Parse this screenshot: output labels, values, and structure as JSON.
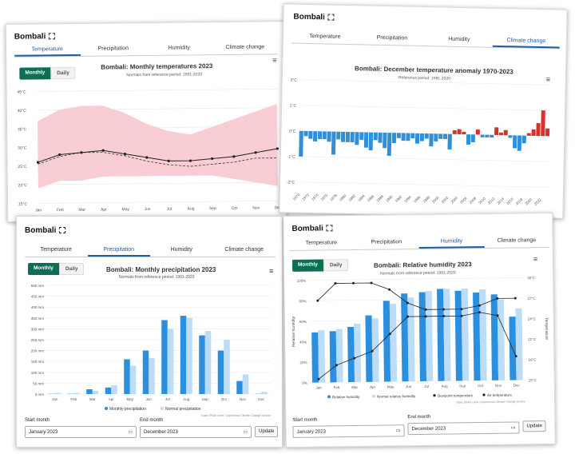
{
  "place": "Bombali",
  "tabs": [
    "Temperature",
    "Precipitation",
    "Humidity",
    "Climate change"
  ],
  "toggle": {
    "monthly": "Monthly",
    "daily": "Daily"
  },
  "months": [
    "Jan",
    "Feb",
    "Mar",
    "Apr",
    "May",
    "Jun",
    "Jul",
    "Aug",
    "Sep",
    "Oct",
    "Nov",
    "Dec"
  ],
  "credit": "Data: ERA5 Land / Copernicus Climate Change Service",
  "temp": {
    "title": "Bombali: Monthly temperatures 2023",
    "subtitle": "Normals from reference period: 1991-2020",
    "yticks": [
      "45°C",
      "40°C",
      "35°C",
      "30°C",
      "25°C",
      "20°C",
      "15°C"
    ],
    "legend": [
      "Mean temperature",
      "Temperature range",
      "Normal temperature"
    ]
  },
  "anom": {
    "title": "Bombali: December temperature anomaly 1970-2023",
    "subtitle": "Reference period: 1991-2020",
    "yticks": [
      "2°C",
      "1°C",
      "0°C",
      "-1°C",
      "-2°C"
    ],
    "years": [
      "1970",
      "1972",
      "1974",
      "1976",
      "1978",
      "1980",
      "1982",
      "1984",
      "1986",
      "1988",
      "1990",
      "1992",
      "1994",
      "1996",
      "1998",
      "2000",
      "2002",
      "2004",
      "2006",
      "2008",
      "2010",
      "2012",
      "2014",
      "2016",
      "2018",
      "2020",
      "2022"
    ]
  },
  "prec": {
    "title": "Bombali: Monthly precipitation 2023",
    "subtitle": "Normals from reference period: 1991-2020",
    "yticks": [
      "500 mm",
      "450 mm",
      "400 mm",
      "350 mm",
      "300 mm",
      "250 mm",
      "200 mm",
      "150 mm",
      "100 mm",
      "50 mm",
      "0 mm"
    ],
    "legend": [
      "Monthly precipitation",
      "Normal precipitation"
    ]
  },
  "hum": {
    "title": "Bombali: Relative humidity 2023",
    "subtitle": "Normals from reference period: 1991-2020",
    "yticks": [
      "100%",
      "80%",
      "60%",
      "40%",
      "20%",
      "0%"
    ],
    "ylabel": "Relative humidity",
    "y2ticks": [
      "30°C",
      "27°C",
      "24°C",
      "21°C",
      "18°C",
      "15°C"
    ],
    "y2label": "Temperature",
    "legend": [
      "Relative humidity",
      "Normal relative humidity",
      "Dewpoint temperature",
      "Air temperature"
    ]
  },
  "form": {
    "start_label": "Start month",
    "start_value": "January 2023",
    "end_label": "End month",
    "end_value": "December 2023",
    "update": "Update"
  },
  "chart_data": [
    {
      "type": "line",
      "title": "Bombali: Monthly temperatures 2023",
      "categories": [
        "Jan",
        "Feb",
        "Mar",
        "Apr",
        "May",
        "Jun",
        "Jul",
        "Aug",
        "Sep",
        "Oct",
        "Nov",
        "Dec"
      ],
      "series": [
        {
          "name": "Mean temperature",
          "values": [
            26,
            28,
            28.5,
            29,
            28,
            27,
            26,
            26,
            26.5,
            27,
            28,
            29
          ]
        },
        {
          "name": "Normal temperature",
          "values": [
            25.5,
            27.5,
            28.5,
            28.5,
            27.5,
            26,
            25,
            24.5,
            25,
            25.5,
            26.5,
            26.5
          ]
        },
        {
          "name": "Temperature range",
          "low": [
            19,
            21,
            21,
            22,
            22,
            22,
            22,
            22,
            22,
            21,
            20,
            19
          ],
          "high": [
            37,
            40,
            41,
            41,
            39,
            36,
            34,
            33,
            35,
            37,
            39,
            41
          ]
        }
      ],
      "ylim": [
        15,
        45
      ]
    },
    {
      "type": "bar",
      "title": "Bombali: December temperature anomaly 1970-2023",
      "x": [
        1970,
        1971,
        1972,
        1973,
        1974,
        1975,
        1976,
        1977,
        1978,
        1979,
        1980,
        1981,
        1982,
        1983,
        1984,
        1985,
        1986,
        1987,
        1988,
        1989,
        1990,
        1991,
        1992,
        1993,
        1994,
        1995,
        1996,
        1997,
        1998,
        1999,
        2000,
        2001,
        2002,
        2003,
        2004,
        2005,
        2006,
        2007,
        2008,
        2009,
        2010,
        2011,
        2012,
        2013,
        2014,
        2015,
        2016,
        2017,
        2018,
        2019,
        2020,
        2021,
        2022,
        2023
      ],
      "values": [
        -1.0,
        -0.2,
        -0.3,
        -0.4,
        -0.3,
        -0.3,
        -0.4,
        -0.9,
        -0.3,
        -0.4,
        -0.4,
        -0.4,
        -0.5,
        -0.3,
        -0.6,
        -0.7,
        -0.3,
        -0.4,
        -0.6,
        -0.9,
        -0.4,
        -0.2,
        -0.3,
        -0.3,
        -0.2,
        -0.4,
        -0.3,
        -0.2,
        -0.5,
        -0.3,
        -0.2,
        -0.2,
        -0.6,
        0.15,
        0.2,
        0.1,
        -0.4,
        -0.3,
        0.2,
        -0.1,
        -0.1,
        -0.1,
        0.3,
        0.1,
        0.2,
        -0.1,
        -0.5,
        -0.6,
        -0.3,
        0.1,
        0.25,
        0.5,
        1.0,
        0.3
      ],
      "ylim": [
        -2,
        2
      ]
    },
    {
      "type": "bar",
      "title": "Bombali: Monthly precipitation 2023",
      "categories": [
        "Jan",
        "Feb",
        "Mar",
        "Apr",
        "May",
        "Jun",
        "Jul",
        "Aug",
        "Sep",
        "Oct",
        "Nov",
        "Dec"
      ],
      "series": [
        {
          "name": "Monthly precipitation",
          "values": [
            1,
            1,
            22,
            30,
            160,
            200,
            340,
            360,
            270,
            200,
            60,
            1
          ]
        },
        {
          "name": "Normal precipitation",
          "values": [
            5,
            5,
            15,
            40,
            130,
            165,
            300,
            350,
            290,
            250,
            90,
            10
          ]
        }
      ],
      "ylim": [
        0,
        500
      ]
    },
    {
      "type": "bar",
      "title": "Bombali: Relative humidity 2023",
      "categories": [
        "Jan",
        "Feb",
        "Mar",
        "Apr",
        "May",
        "Jun",
        "Jul",
        "Aug",
        "Sep",
        "Oct",
        "Nov",
        "Dec"
      ],
      "series": [
        {
          "name": "Relative humidity",
          "values": [
            49,
            50,
            54,
            65,
            79,
            86,
            87,
            90,
            88,
            86,
            84,
            62
          ]
        },
        {
          "name": "Normal relative humidity",
          "values": [
            51,
            52,
            57,
            62,
            76,
            82,
            88,
            90,
            90,
            89,
            79,
            70
          ]
        },
        {
          "name": "Dewpoint temperature",
          "values": [
            15.5,
            17.5,
            18.5,
            19.5,
            22,
            24.5,
            24.5,
            24.5,
            24.5,
            25,
            24.5,
            18.5
          ]
        },
        {
          "name": "Air temperature",
          "values": [
            27,
            29.5,
            29.5,
            29.5,
            28.5,
            26.5,
            25.5,
            25.5,
            25.5,
            26,
            27,
            27
          ]
        }
      ],
      "ylim": [
        0,
        100
      ],
      "y2lim": [
        15,
        30
      ]
    }
  ]
}
